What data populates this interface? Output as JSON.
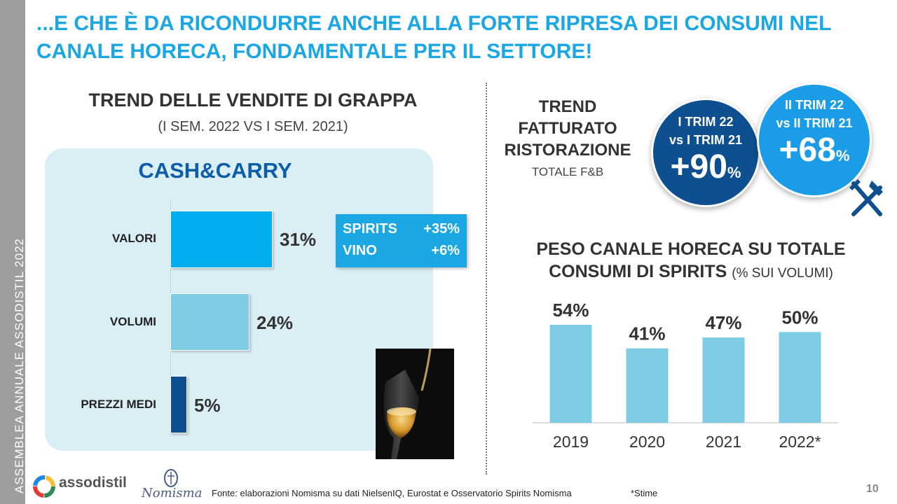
{
  "side_label": "ASSEMBLEA ANNUALE ASSODISTIL 2022",
  "headline": "...E CHE È DA RICONDURRE ANCHE ALLA FORTE RIPRESA DEI CONSUMI NEL CANALE HORECA, FONDAMENTALE PER IL SETTORE!",
  "left": {
    "title": "TREND DELLE VENDITE DI GRAPPA",
    "subtitle": "(I SEM. 2022 VS I SEM. 2021)",
    "panel_title": "CASH&CARRY",
    "bars": [
      {
        "label": "VALORI",
        "value": 31,
        "value_label": "31%",
        "color": "#00aeef"
      },
      {
        "label": "VOLUMI",
        "value": 24,
        "value_label": "24%",
        "color": "#7fcde4"
      },
      {
        "label": "PREZZI MEDI",
        "value": 5,
        "value_label": "5%",
        "color": "#0d4f8f"
      }
    ],
    "callout": {
      "row1_name": "SPIRITS",
      "row1_value": "+35%",
      "row2_name": "VINO",
      "row2_value": "+6%"
    }
  },
  "right": {
    "trend_title": "TREND FATTURATO RISTORAZIONE",
    "trend_subtitle": "TOTALE F&B",
    "circles": [
      {
        "line1": "I TRIM 22",
        "line2": "vs I TRIM 21",
        "value": "+90",
        "unit": "%"
      },
      {
        "line1": "II TRIM 22",
        "line2": "vs II TRIM 21",
        "value": "+68",
        "unit": "%"
      }
    ],
    "peso_title_line1": "PESO CANALE HORECA SU TOTALE",
    "peso_title_line2": "CONSUMI DI SPIRITS",
    "peso_title_suffix": "(% SUI VOLUMI)"
  },
  "chart_data": {
    "type": "bar",
    "categories": [
      "2019",
      "2020",
      "2021",
      "2022*"
    ],
    "values": [
      54,
      41,
      47,
      50
    ],
    "value_labels": [
      "54%",
      "41%",
      "47%",
      "50%"
    ],
    "title": "PESO CANALE HORECA SU TOTALE CONSUMI DI SPIRITS (% SUI VOLUMI)",
    "ylim": [
      0,
      60
    ],
    "grid": false,
    "bar_color": "#7fcde4"
  },
  "footer": {
    "logo_text": "assodistil",
    "logo2_text": "Nomisma",
    "source": "Fonte: elaborazioni Nomisma su dati NielsenIQ, Eurostat e Osservatorio Spirits Nomisma",
    "note": "*Stime",
    "page_number": "10"
  },
  "colors": {
    "accent": "#1aa7e3",
    "dark_blue": "#0d4f8f",
    "light_blue": "#7fcde4",
    "panel_bg": "#daeef5"
  }
}
